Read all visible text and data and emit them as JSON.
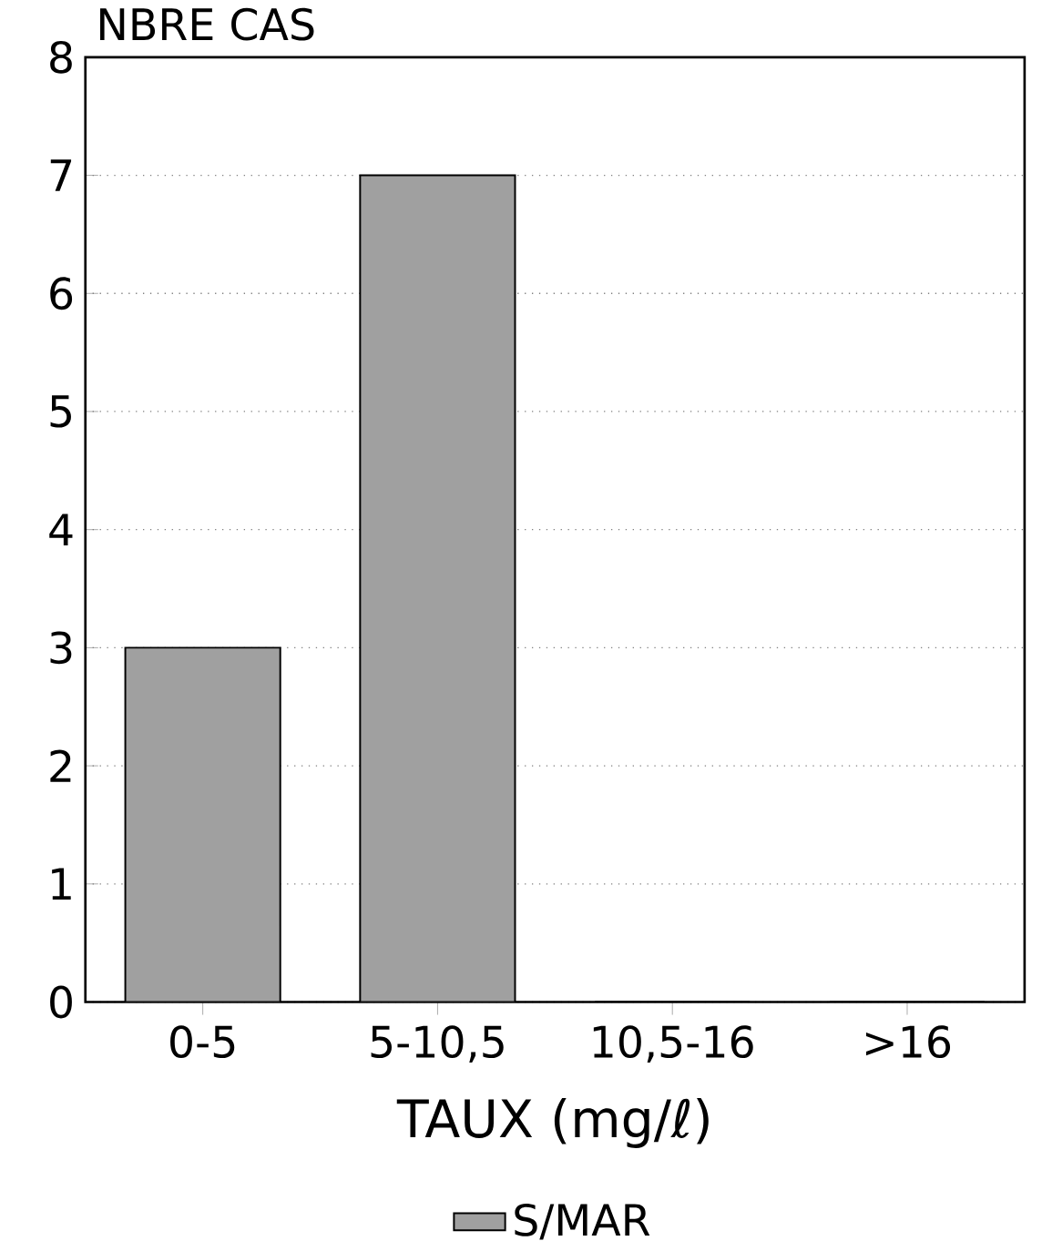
{
  "chart_data": {
    "type": "bar",
    "xlabel": "TAUX (mg/ℓ)",
    "ylabel": "NBRE CAS",
    "categories": [
      "0-5",
      "5-10,5",
      "10,5-16",
      ">16"
    ],
    "series": [
      {
        "name": "S/MAR",
        "color": "#a0a0a0",
        "values": [
          3,
          7,
          0,
          0
        ]
      }
    ],
    "ylim": [
      0,
      8
    ],
    "yticks": [
      0,
      1,
      2,
      3,
      4,
      5,
      6,
      7,
      8
    ],
    "grid": "y",
    "legend": "bottom"
  }
}
